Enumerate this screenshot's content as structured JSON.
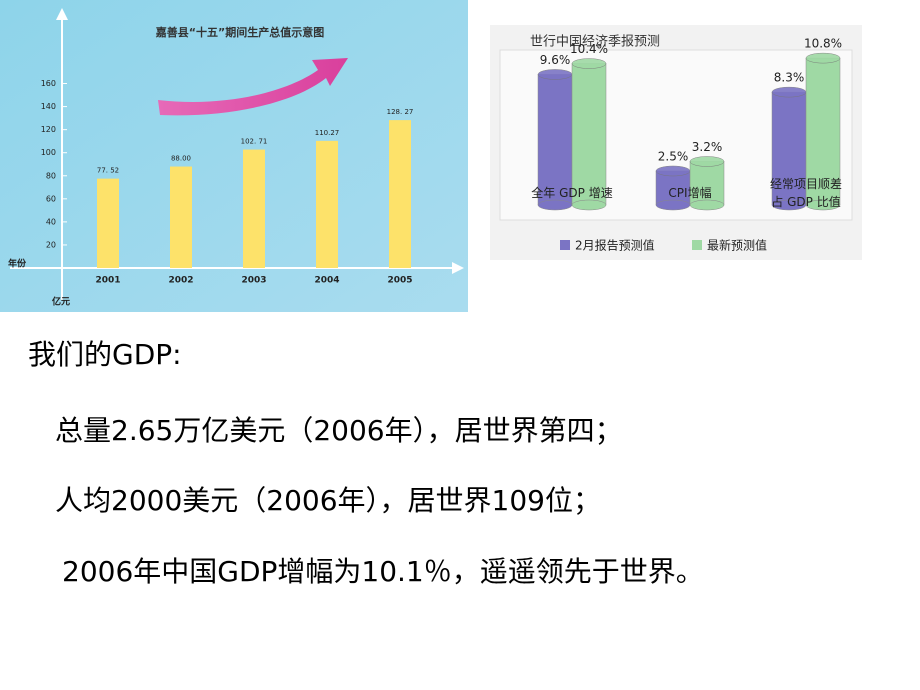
{
  "chart_data": [
    {
      "type": "bar",
      "title": "嘉善县“十五”期间生产总值示意图",
      "categories": [
        "2001",
        "2002",
        "2003",
        "2004",
        "2005"
      ],
      "values": [
        77.52,
        88.0,
        102.71,
        110.27,
        128.27
      ],
      "value_labels": [
        "77. 52",
        "88.00",
        "102. 71",
        "110.27",
        "128. 27"
      ],
      "color": "#fde26a",
      "x_label": "年份",
      "y_label": "亿元",
      "ylim": [
        0,
        170
      ],
      "yticks": [
        20,
        40,
        60,
        80,
        100,
        120,
        140,
        160
      ],
      "grid": false
    },
    {
      "type": "grouped-bar",
      "title": "世行中国经济季报预测",
      "categories": [
        "全年 GDP 增速",
        "CPI增幅",
        "经常项目顺差\n占 GDP 比值"
      ],
      "series": [
        {
          "name": "2月报告预测值",
          "color": "#7b74c4",
          "values": [
            9.6,
            2.5,
            8.3
          ],
          "value_labels": [
            "9.6%",
            "2.5%",
            "8.3%"
          ]
        },
        {
          "name": "最新预测值",
          "color": "#9fd9a4",
          "values": [
            10.4,
            3.2,
            10.8
          ],
          "value_labels": [
            "10.4%",
            "3.2%",
            "10.8%"
          ]
        }
      ],
      "legend": "bottom"
    }
  ],
  "text": [
    "我们的GDP:",
    "总量2.65万亿美元（2006年），居世界第四；",
    "人均2000美元（2006年），居世界109位；",
    "2006年中国GDP增幅为10.1％，遥遥领先于世界。"
  ]
}
